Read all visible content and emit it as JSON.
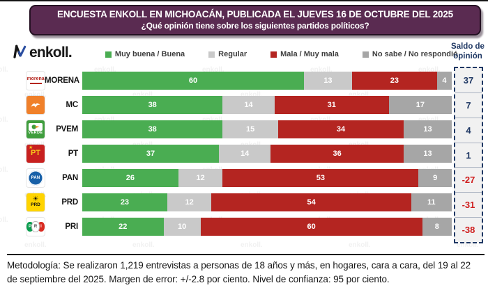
{
  "header": {
    "title": "ENCUESTA ENKOLL EN MICHOACÁN, PUBLICADA EL JUEVES 16 DE OCTUBRE DEL 2025",
    "subtitle": "¿Qué opinión tiene sobre los siguientes partidos políticos?"
  },
  "brand": {
    "logo_text": "enkoll."
  },
  "legend": [
    {
      "label": "Muy buena / Buena",
      "color": "#4aad52"
    },
    {
      "label": "Regular",
      "color": "#c9c9c9"
    },
    {
      "label": "Mala / Muy mala",
      "color": "#b42521"
    },
    {
      "label": "No sabe / No respondió",
      "color": "#a6a6a6"
    }
  ],
  "saldo": {
    "header": "Saldo de opinión",
    "values": [
      37,
      7,
      4,
      1,
      -27,
      -31,
      -38
    ],
    "positive_color": "#1f3864",
    "negative_color": "#cf1f1f"
  },
  "parties": [
    {
      "name": "MORENA",
      "logo": "morena",
      "logo_text": "morena"
    },
    {
      "name": "MC",
      "logo": "mc",
      "logo_text": ""
    },
    {
      "name": "PVEM",
      "logo": "pvem",
      "logo_text": "VERDE"
    },
    {
      "name": "PT",
      "logo": "pt",
      "logo_text": "PT"
    },
    {
      "name": "PAN",
      "logo": "pan",
      "logo_text": "PAN"
    },
    {
      "name": "PRD",
      "logo": "prd",
      "logo_text": "PRD"
    },
    {
      "name": "PRI",
      "logo": "pri",
      "logo_text": "PRI"
    }
  ],
  "chart_data": {
    "type": "bar",
    "orientation": "horizontal",
    "stacked": true,
    "title": "ENCUESTA ENKOLL EN MICHOACÁN, PUBLICADA EL JUEVES 16 DE OCTUBRE DEL 2025",
    "subtitle": "¿Qué opinión tiene sobre los siguientes partidos políticos?",
    "categories": [
      "MORENA",
      "MC",
      "PVEM",
      "PT",
      "PAN",
      "PRD",
      "PRI"
    ],
    "series": [
      {
        "name": "Muy buena / Buena",
        "color": "#4aad52",
        "values": [
          60,
          38,
          38,
          37,
          26,
          23,
          22
        ]
      },
      {
        "name": "Regular",
        "color": "#c9c9c9",
        "values": [
          13,
          14,
          15,
          14,
          12,
          12,
          10
        ]
      },
      {
        "name": "Mala / Muy mala",
        "color": "#b42521",
        "values": [
          23,
          31,
          34,
          36,
          53,
          54,
          60
        ]
      },
      {
        "name": "No sabe / No respondió",
        "color": "#a6a6a6",
        "values": [
          4,
          17,
          13,
          13,
          9,
          11,
          8
        ]
      }
    ],
    "saldo_de_opinion": [
      37,
      7,
      4,
      1,
      -27,
      -31,
      -38
    ],
    "xlim": [
      0,
      100
    ],
    "legend_position": "top",
    "grid": false
  },
  "footer": {
    "text": "Metodología: Se realizaron 1,219 entrevistas a personas de 18 años y más, en hogares, cara a cara, del 19 al 22 de septiembre del 2025. Margen de error: +/-2.8 por ciento. Nivel de confianza: 95 por ciento."
  }
}
